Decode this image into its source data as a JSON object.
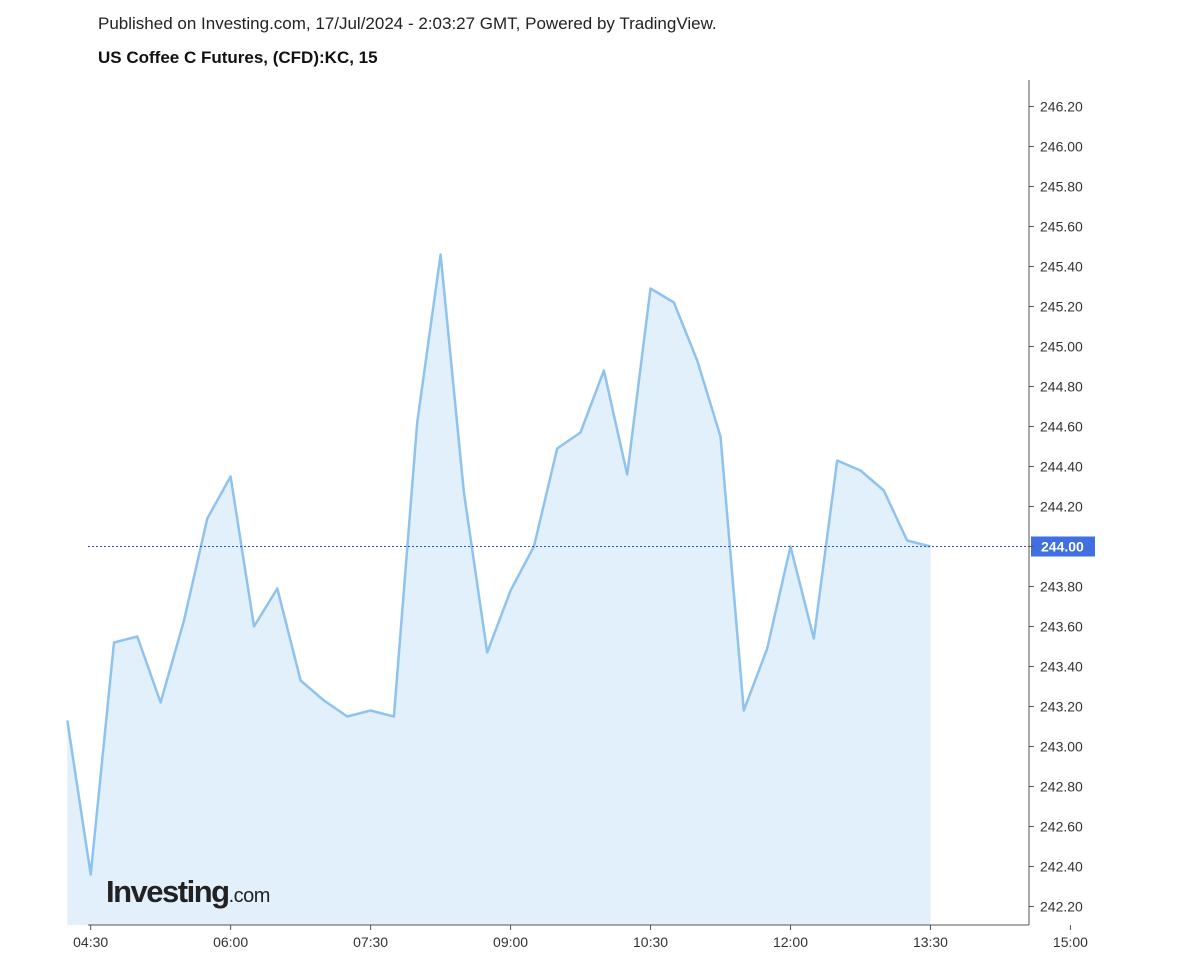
{
  "header": {
    "published": "Published on Investing.com, 17/Jul/2024 - 2:03:27 GMT, Powered by TradingView.",
    "title": "US Coffee C Futures, (CFD):KC, 15"
  },
  "logo": {
    "main": "Investing",
    "suffix": ".com"
  },
  "colors": {
    "line": "#8fc3ee",
    "area": "#e1f0fa",
    "current_line": "#2d55c9",
    "current_badge": "#3f6fe0",
    "axis": "#555555"
  },
  "chart_data": {
    "type": "area",
    "title": "US Coffee C Futures, (CFD):KC, 15",
    "xlabel": "",
    "ylabel": "",
    "x": [
      "04:15",
      "04:30",
      "04:45",
      "05:00",
      "05:15",
      "05:30",
      "05:45",
      "06:00",
      "06:15",
      "06:30",
      "06:45",
      "07:00",
      "07:15",
      "07:30",
      "07:45",
      "08:00",
      "08:15",
      "08:30",
      "08:45",
      "09:00",
      "09:15",
      "09:30",
      "09:45",
      "10:00",
      "10:15",
      "10:30",
      "10:45",
      "11:00",
      "11:15",
      "11:30",
      "11:45",
      "12:00",
      "12:15",
      "12:30",
      "12:45",
      "13:00",
      "13:15",
      "13:30"
    ],
    "series": [
      {
        "values": [
          243.13,
          242.36,
          243.52,
          243.55,
          243.22,
          243.63,
          244.14,
          244.35,
          243.6,
          243.79,
          243.33,
          243.23,
          243.15,
          243.18,
          243.15,
          244.62,
          245.46,
          244.27,
          243.47,
          243.78,
          244.0,
          244.49,
          244.57,
          244.88,
          244.36,
          245.29,
          245.22,
          244.93,
          244.55,
          243.18,
          243.49,
          244.0,
          243.54,
          244.43,
          244.38,
          244.28,
          244.03,
          244.0
        ]
      }
    ],
    "current_value": "244.00",
    "y_ticks": [
      "246.20",
      "246.00",
      "245.80",
      "245.60",
      "245.40",
      "245.20",
      "245.00",
      "244.80",
      "244.60",
      "244.40",
      "244.20",
      "244.00",
      "243.80",
      "243.60",
      "243.40",
      "243.20",
      "243.00",
      "242.80",
      "242.60",
      "242.40",
      "242.20"
    ],
    "x_ticks": [
      "04:30",
      "06:00",
      "07:30",
      "09:00",
      "10:30",
      "12:00",
      "13:30",
      "15:00"
    ],
    "ylim": [
      242.025,
      246.275
    ],
    "xlim": [
      "04:00",
      "16:00"
    ],
    "grid": false,
    "legend": "none",
    "y_axis_position": "right"
  }
}
